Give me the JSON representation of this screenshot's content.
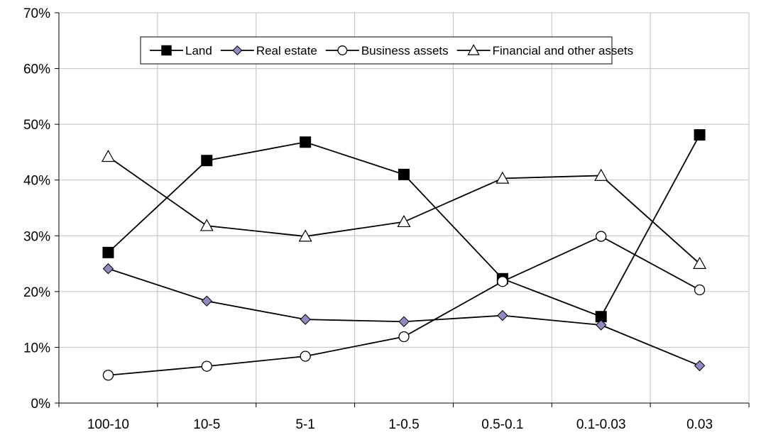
{
  "chart_data": {
    "type": "line",
    "title": "",
    "xlabel": "",
    "ylabel": "",
    "categories": [
      "100-10",
      "10-5",
      "5-1",
      "1-0.5",
      "0.5-0.1",
      "0.1-0.03",
      "0.03"
    ],
    "ylim": [
      0,
      70
    ],
    "yticks": [
      0,
      10,
      20,
      30,
      40,
      50,
      60,
      70
    ],
    "ytick_labels": [
      "0%",
      "10%",
      "20%",
      "30%",
      "40%",
      "50%",
      "60%",
      "70%"
    ],
    "grid": true,
    "legend_position": "top-right",
    "series": [
      {
        "name": "Land",
        "marker": "square",
        "values": [
          27,
          43.5,
          46.8,
          41,
          22.3,
          15.5,
          48.1
        ]
      },
      {
        "name": "Real estate",
        "marker": "diamond",
        "values": [
          24.1,
          18.3,
          15,
          14.6,
          15.7,
          14,
          6.7
        ]
      },
      {
        "name": "Business assets",
        "marker": "circle",
        "values": [
          5,
          6.6,
          8.4,
          11.9,
          21.8,
          29.9,
          20.3
        ]
      },
      {
        "name": "Financial and other assets",
        "marker": "triangle",
        "values": [
          44.2,
          31.8,
          29.9,
          32.5,
          40.3,
          40.8,
          25
        ]
      }
    ],
    "colors": {
      "line": "#000000",
      "grid": "#c0c0c0",
      "square_fill": "#000000",
      "diamond_fill": "#9488c0",
      "open_fill": "#ffffff"
    }
  }
}
